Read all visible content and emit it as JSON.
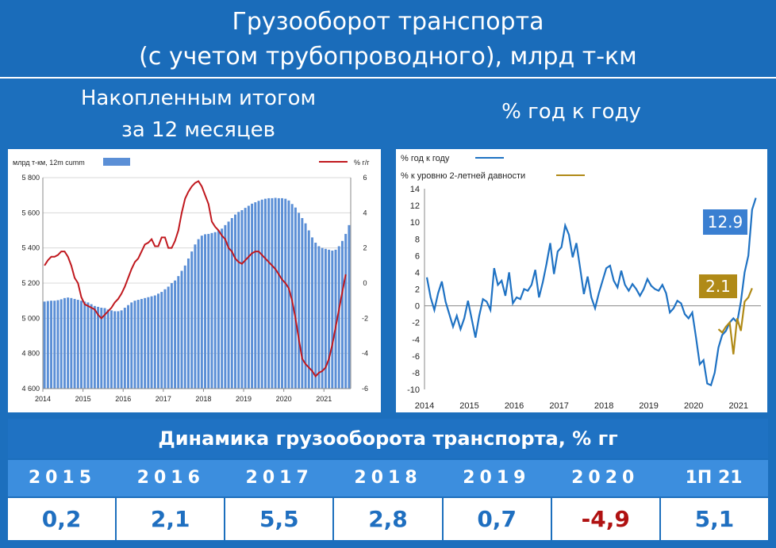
{
  "header": {
    "title_line1": "Грузооборот транспорта",
    "title_line2": "(с учетом трубопроводного), млрд т-км",
    "left_sub_line1": "Накопленным итогом",
    "left_sub_line2": "за 12 месяцев",
    "right_sub": "% год к году"
  },
  "chart_data": [
    {
      "type": "bar",
      "legend_bar": "млрд т-км, 12m cumm",
      "legend_line": "% г/г",
      "x_ticks": [
        "2014",
        "2015",
        "2016",
        "2017",
        "2018",
        "2019",
        "2020",
        "2021"
      ],
      "y_left_ticks": [
        "4 600",
        "4 800",
        "5 000",
        "5 200",
        "5 400",
        "5 600",
        "5 800"
      ],
      "y_right_ticks": [
        "-6",
        "-4",
        "-2",
        "0",
        "2",
        "4",
        "6"
      ],
      "ylim_left": [
        4600,
        5800
      ],
      "ylim_right": [
        -6,
        6
      ],
      "series": [
        {
          "name": "млрд т-км, 12m cumm",
          "color": "#5b8fd6",
          "values": [
            5095,
            5098,
            5100,
            5100,
            5103,
            5108,
            5115,
            5118,
            5115,
            5110,
            5105,
            5100,
            5095,
            5090,
            5080,
            5070,
            5065,
            5060,
            5058,
            5050,
            5045,
            5040,
            5040,
            5045,
            5060,
            5075,
            5090,
            5100,
            5105,
            5110,
            5115,
            5120,
            5125,
            5130,
            5140,
            5150,
            5165,
            5180,
            5200,
            5215,
            5240,
            5270,
            5300,
            5340,
            5380,
            5420,
            5450,
            5470,
            5478,
            5480,
            5485,
            5490,
            5500,
            5510,
            5530,
            5550,
            5570,
            5590,
            5605,
            5615,
            5628,
            5640,
            5652,
            5660,
            5668,
            5675,
            5680,
            5683,
            5683,
            5685,
            5683,
            5683,
            5680,
            5670,
            5650,
            5630,
            5600,
            5570,
            5540,
            5500,
            5460,
            5430,
            5410,
            5400,
            5395,
            5390,
            5385,
            5390,
            5410,
            5440,
            5480,
            5530
          ]
        },
        {
          "name": "% г/г",
          "color": "#c0181e",
          "values": [
            1.0,
            1.3,
            1.5,
            1.5,
            1.6,
            1.8,
            1.8,
            1.5,
            1.0,
            0.3,
            0.0,
            -0.8,
            -1.2,
            -1.3,
            -1.4,
            -1.5,
            -1.8,
            -2.0,
            -1.8,
            -1.6,
            -1.4,
            -1.1,
            -0.9,
            -0.6,
            -0.2,
            0.3,
            0.8,
            1.2,
            1.4,
            1.8,
            2.2,
            2.3,
            2.5,
            2.1,
            2.1,
            2.6,
            2.6,
            2.0,
            2.0,
            2.4,
            3.0,
            4.0,
            4.8,
            5.2,
            5.5,
            5.7,
            5.8,
            5.5,
            5.0,
            4.5,
            3.5,
            3.2,
            3.0,
            2.7,
            2.5,
            2.0,
            1.8,
            1.4,
            1.2,
            1.1,
            1.3,
            1.5,
            1.7,
            1.8,
            1.8,
            1.6,
            1.4,
            1.2,
            1.0,
            0.8,
            0.5,
            0.2,
            0.0,
            -0.3,
            -1.0,
            -2.0,
            -3.2,
            -4.3,
            -4.6,
            -4.8,
            -5.0,
            -5.3,
            -5.1,
            -5.0,
            -4.8,
            -4.3,
            -3.5,
            -2.5,
            -1.5,
            -0.5,
            0.5
          ]
        }
      ]
    },
    {
      "type": "line",
      "x_ticks": [
        "2014",
        "2015",
        "2016",
        "2017",
        "2018",
        "2019",
        "2020",
        "2021"
      ],
      "y_ticks": [
        "14",
        "12",
        "10",
        "8",
        "6",
        "4",
        "2",
        "0",
        "-2",
        "-4",
        "-6",
        "-8",
        "-10"
      ],
      "ylim": [
        -10,
        14
      ],
      "series": [
        {
          "name": "% год к году",
          "color": "#1f72c3",
          "values": [
            3.4,
            1.0,
            -0.5,
            1.5,
            2.9,
            0.5,
            -1.0,
            -2.5,
            -1.2,
            -2.8,
            -1.5,
            0.6,
            -1.6,
            -3.8,
            -1.2,
            0.8,
            0.5,
            -0.5,
            4.5,
            2.5,
            3.0,
            1.2,
            4.0,
            0.3,
            1.0,
            0.8,
            2.0,
            1.8,
            2.5,
            4.3,
            1.0,
            2.8,
            5.0,
            7.5,
            3.8,
            6.5,
            7.0,
            9.6,
            8.5,
            5.8,
            7.5,
            4.5,
            1.4,
            3.5,
            1.0,
            -0.3,
            1.5,
            3.0,
            4.5,
            4.8,
            3.0,
            2.2,
            4.2,
            2.5,
            1.8,
            2.6,
            2.0,
            1.2,
            2.0,
            3.2,
            2.4,
            2.0,
            1.8,
            2.5,
            1.5,
            -0.8,
            -0.3,
            0.6,
            0.3,
            -1.0,
            -1.5,
            -0.8,
            -3.8,
            -7.0,
            -6.5,
            -9.3,
            -9.5,
            -8.0,
            -5.0,
            -3.5,
            -3.0,
            -2.0,
            -1.5,
            -2.0,
            0.5,
            4.0,
            6.0,
            11.5,
            12.9
          ]
        },
        {
          "name": "% к уровню 2-летней давности",
          "color": "#b08a17",
          "x_start_index": 78,
          "values": [
            -2.8,
            -3.2,
            -2.5,
            -2.0,
            -5.8,
            -1.5,
            -3.0,
            0.5,
            1.0,
            2.1
          ]
        }
      ],
      "callouts": [
        {
          "text": "12.9",
          "color": "#3a7fd1"
        },
        {
          "text": "2.1",
          "color": "#b08a17"
        }
      ]
    }
  ],
  "table": {
    "title": "Динамика грузооборота транспорта, % гг",
    "years": [
      "2015",
      "2016",
      "2017",
      "2018",
      "2019",
      "2020",
      "1П 21"
    ],
    "values": [
      "0,2",
      "2,1",
      "5,5",
      "2,8",
      "0,7",
      "-4,9",
      "5,1"
    ],
    "negative_index": 5
  }
}
